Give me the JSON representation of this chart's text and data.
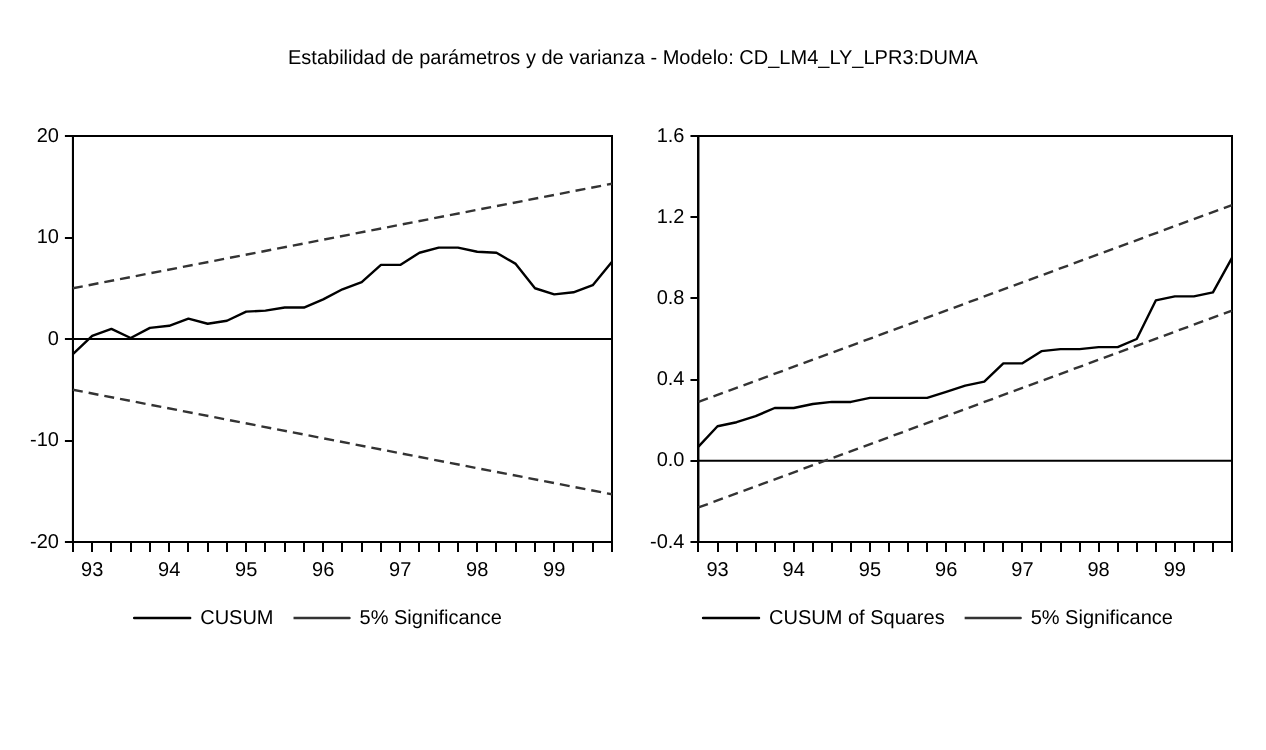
{
  "chart_data": [
    {
      "type": "line",
      "title": "Estabilidad de parámetros y de varianza  - Modelo: CD_LM4_LY_LPR3:DUMA",
      "categories": [
        null,
        "93",
        null,
        null,
        null,
        "94",
        null,
        null,
        null,
        "95",
        null,
        null,
        null,
        "96",
        null,
        null,
        null,
        "97",
        null,
        null,
        null,
        "98",
        null,
        null,
        null,
        "99",
        null,
        null,
        null
      ],
      "series": [
        {
          "name": "CUSUM",
          "color": "#000000",
          "line_style": "solid",
          "values": [
            -1.5,
            0.3,
            1.0,
            0.1,
            1.1,
            1.3,
            2.0,
            1.5,
            1.8,
            2.7,
            2.8,
            3.1,
            3.1,
            3.9,
            4.9,
            5.6,
            7.3,
            7.3,
            8.5,
            9.0,
            9.0,
            8.6,
            8.5,
            7.4,
            5.0,
            4.4,
            4.6,
            5.3,
            7.6
          ]
        },
        {
          "name": "5% Significance",
          "color": "#333333",
          "line_style": "dashed",
          "values": [
            5,
            null,
            null,
            null,
            null,
            null,
            null,
            null,
            null,
            null,
            null,
            null,
            null,
            null,
            null,
            null,
            null,
            null,
            null,
            null,
            null,
            null,
            null,
            null,
            null,
            null,
            null,
            null,
            15.3
          ]
        },
        {
          "color": "#333333",
          "line_style": "dashed",
          "values": [
            -5,
            null,
            null,
            null,
            null,
            null,
            null,
            null,
            null,
            null,
            null,
            null,
            null,
            null,
            null,
            null,
            null,
            null,
            null,
            null,
            null,
            null,
            null,
            null,
            null,
            null,
            null,
            null,
            -15.3
          ]
        }
      ],
      "ylim": [
        -20,
        20
      ],
      "yticks": [
        -20,
        -10,
        0,
        10,
        20
      ],
      "ref_lines": [
        {
          "axis": "y",
          "value": 0,
          "color": "#000000"
        }
      ],
      "grid": false,
      "legend": "bottom",
      "marker": "none"
    },
    {
      "type": "line",
      "categories": [
        null,
        "93",
        null,
        null,
        null,
        "94",
        null,
        null,
        null,
        "95",
        null,
        null,
        null,
        "96",
        null,
        null,
        null,
        "97",
        null,
        null,
        null,
        "98",
        null,
        null,
        null,
        "99",
        null,
        null,
        null
      ],
      "series": [
        {
          "name": "CUSUM of Squares",
          "color": "#000000",
          "line_style": "solid",
          "values": [
            0.07,
            0.17,
            0.19,
            0.22,
            0.26,
            0.26,
            0.28,
            0.29,
            0.29,
            0.31,
            0.31,
            0.31,
            0.31,
            0.34,
            0.37,
            0.39,
            0.48,
            0.48,
            0.54,
            0.55,
            0.55,
            0.56,
            0.56,
            0.6,
            0.79,
            0.81,
            0.81,
            0.83,
            1.0
          ]
        },
        {
          "name": "5% Significance",
          "color": "#333333",
          "line_style": "dashed",
          "values": [
            0.29,
            null,
            null,
            null,
            null,
            null,
            null,
            null,
            null,
            null,
            null,
            null,
            null,
            null,
            null,
            null,
            null,
            null,
            null,
            null,
            null,
            null,
            null,
            null,
            null,
            null,
            null,
            null,
            1.26
          ]
        },
        {
          "color": "#333333",
          "line_style": "dashed",
          "values": [
            -0.23,
            null,
            null,
            null,
            null,
            null,
            null,
            null,
            null,
            null,
            null,
            null,
            null,
            null,
            null,
            null,
            null,
            null,
            null,
            null,
            null,
            null,
            null,
            null,
            null,
            null,
            null,
            null,
            0.74
          ]
        }
      ],
      "ylim": [
        -0.4,
        1.6
      ],
      "yticks": [
        -0.4,
        {
          "value": 0,
          "label": "0.0"
        },
        0.4,
        0.8,
        1.2,
        1.6
      ],
      "ref_lines": [
        {
          "axis": "y",
          "value": 0,
          "color": "#000000"
        }
      ],
      "grid": false,
      "legend": "bottom",
      "marker": "none"
    }
  ]
}
